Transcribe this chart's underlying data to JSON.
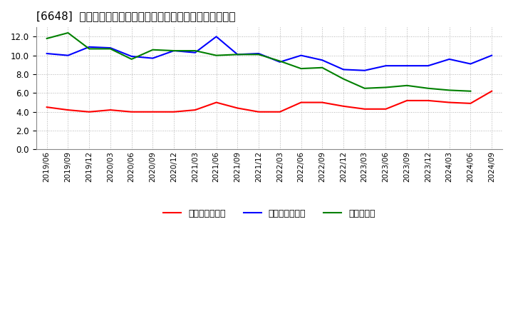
{
  "title": "[6648]  売上債権回転率、買入債務回転率、在庫回転率の推移",
  "labels": [
    "2019/06",
    "2019/09",
    "2019/12",
    "2020/03",
    "2020/06",
    "2020/09",
    "2020/12",
    "2021/03",
    "2021/06",
    "2021/09",
    "2021/12",
    "2022/03",
    "2022/06",
    "2022/09",
    "2022/12",
    "2023/03",
    "2023/06",
    "2023/09",
    "2023/12",
    "2024/03",
    "2024/06",
    "2024/09"
  ],
  "売上債権回転率": [
    4.5,
    4.2,
    4.0,
    4.2,
    4.0,
    4.0,
    4.0,
    4.2,
    5.0,
    4.4,
    4.0,
    4.0,
    5.0,
    5.0,
    4.6,
    4.3,
    4.3,
    5.2,
    5.2,
    5.0,
    4.9,
    6.2
  ],
  "買入債務回転率": [
    10.2,
    10.0,
    10.9,
    10.8,
    9.9,
    9.7,
    10.5,
    10.3,
    12.0,
    10.1,
    10.2,
    9.3,
    10.0,
    9.5,
    8.5,
    8.4,
    8.9,
    8.9,
    8.9,
    9.6,
    9.1,
    10.0
  ],
  "在庫回転率": [
    11.8,
    12.4,
    10.7,
    10.7,
    9.6,
    10.6,
    10.5,
    10.5,
    10.0,
    10.1,
    10.1,
    9.4,
    8.6,
    8.7,
    7.5,
    6.5,
    6.6,
    6.8,
    6.5,
    6.3,
    6.2,
    null
  ],
  "line_colors": {
    "売上債権回転率": "#ff0000",
    "買入債務回転率": "#0000ff",
    "在庫回転率": "#008000"
  },
  "ylim": [
    0.0,
    13.0
  ],
  "yticks": [
    0.0,
    2.0,
    4.0,
    6.0,
    8.0,
    10.0,
    12.0
  ],
  "legend_labels": [
    "売上債権回転率",
    "買入債務回転率",
    "在庫回転率"
  ],
  "background_color": "#ffffff",
  "grid_color": "#aaaaaa"
}
